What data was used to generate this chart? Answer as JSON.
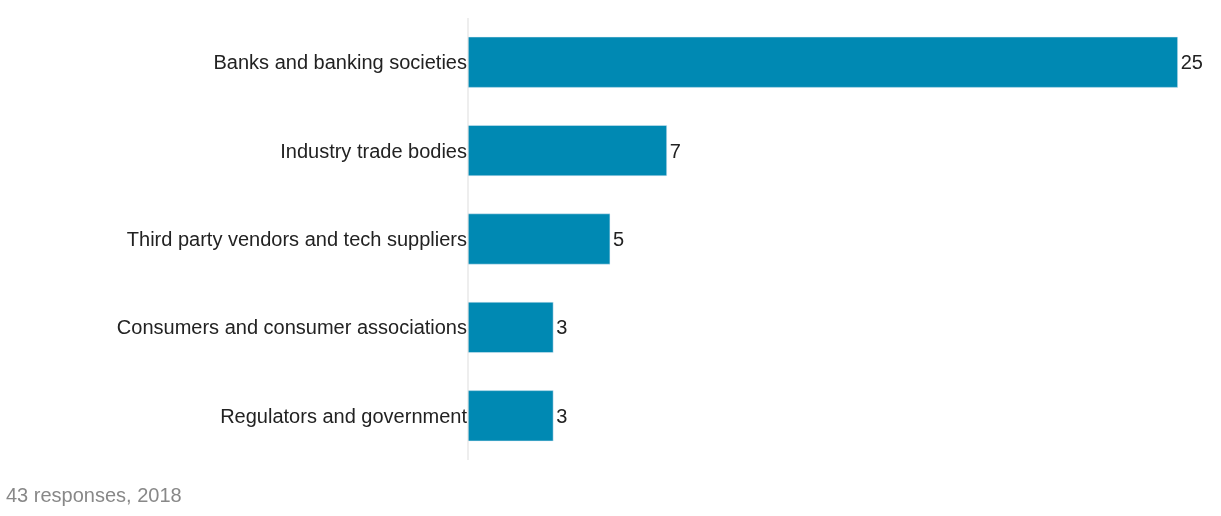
{
  "chart_data": {
    "type": "bar",
    "orientation": "horizontal",
    "categories": [
      "Banks and banking societies",
      "Industry trade bodies",
      "Third party vendors and tech suppliers",
      "Consumers and consumer associations",
      "Regulators and government"
    ],
    "values": [
      25,
      7,
      5,
      3,
      3
    ],
    "color": "#0089b3",
    "data_labels": true,
    "tick_labels": "y",
    "annotations": [
      "43 responses, 2018"
    ]
  }
}
